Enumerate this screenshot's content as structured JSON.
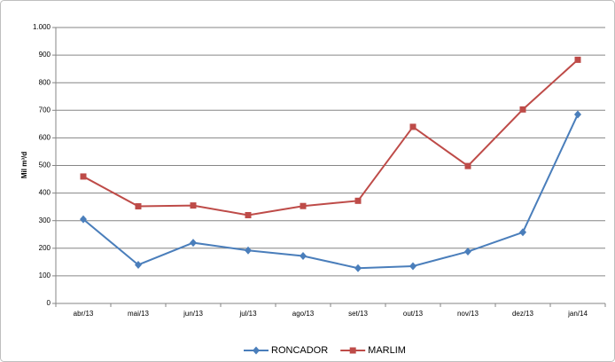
{
  "chart_data": {
    "type": "line",
    "ylabel": "Mil m³/d",
    "categories": [
      "abr/13",
      "mai/13",
      "jun/13",
      "jul/13",
      "ago/13",
      "set/13",
      "out/13",
      "nov/13",
      "dez/13",
      "jan/14"
    ],
    "series": [
      {
        "name": "RONCADOR",
        "color": "#4a7ebb",
        "marker": "diamond",
        "values": [
          305,
          140,
          220,
          192,
          172,
          128,
          135,
          188,
          258,
          685
        ]
      },
      {
        "name": "MARLIM",
        "color": "#be4b48",
        "marker": "square",
        "values": [
          460,
          352,
          355,
          320,
          353,
          372,
          640,
          498,
          703,
          883
        ]
      }
    ],
    "ylim": [
      0,
      1000
    ],
    "yticks": [
      0,
      100,
      200,
      300,
      400,
      500,
      600,
      700,
      800,
      900,
      {
        "value": 1000,
        "label": "1.000"
      }
    ],
    "grid": true,
    "legend": "bottom"
  }
}
